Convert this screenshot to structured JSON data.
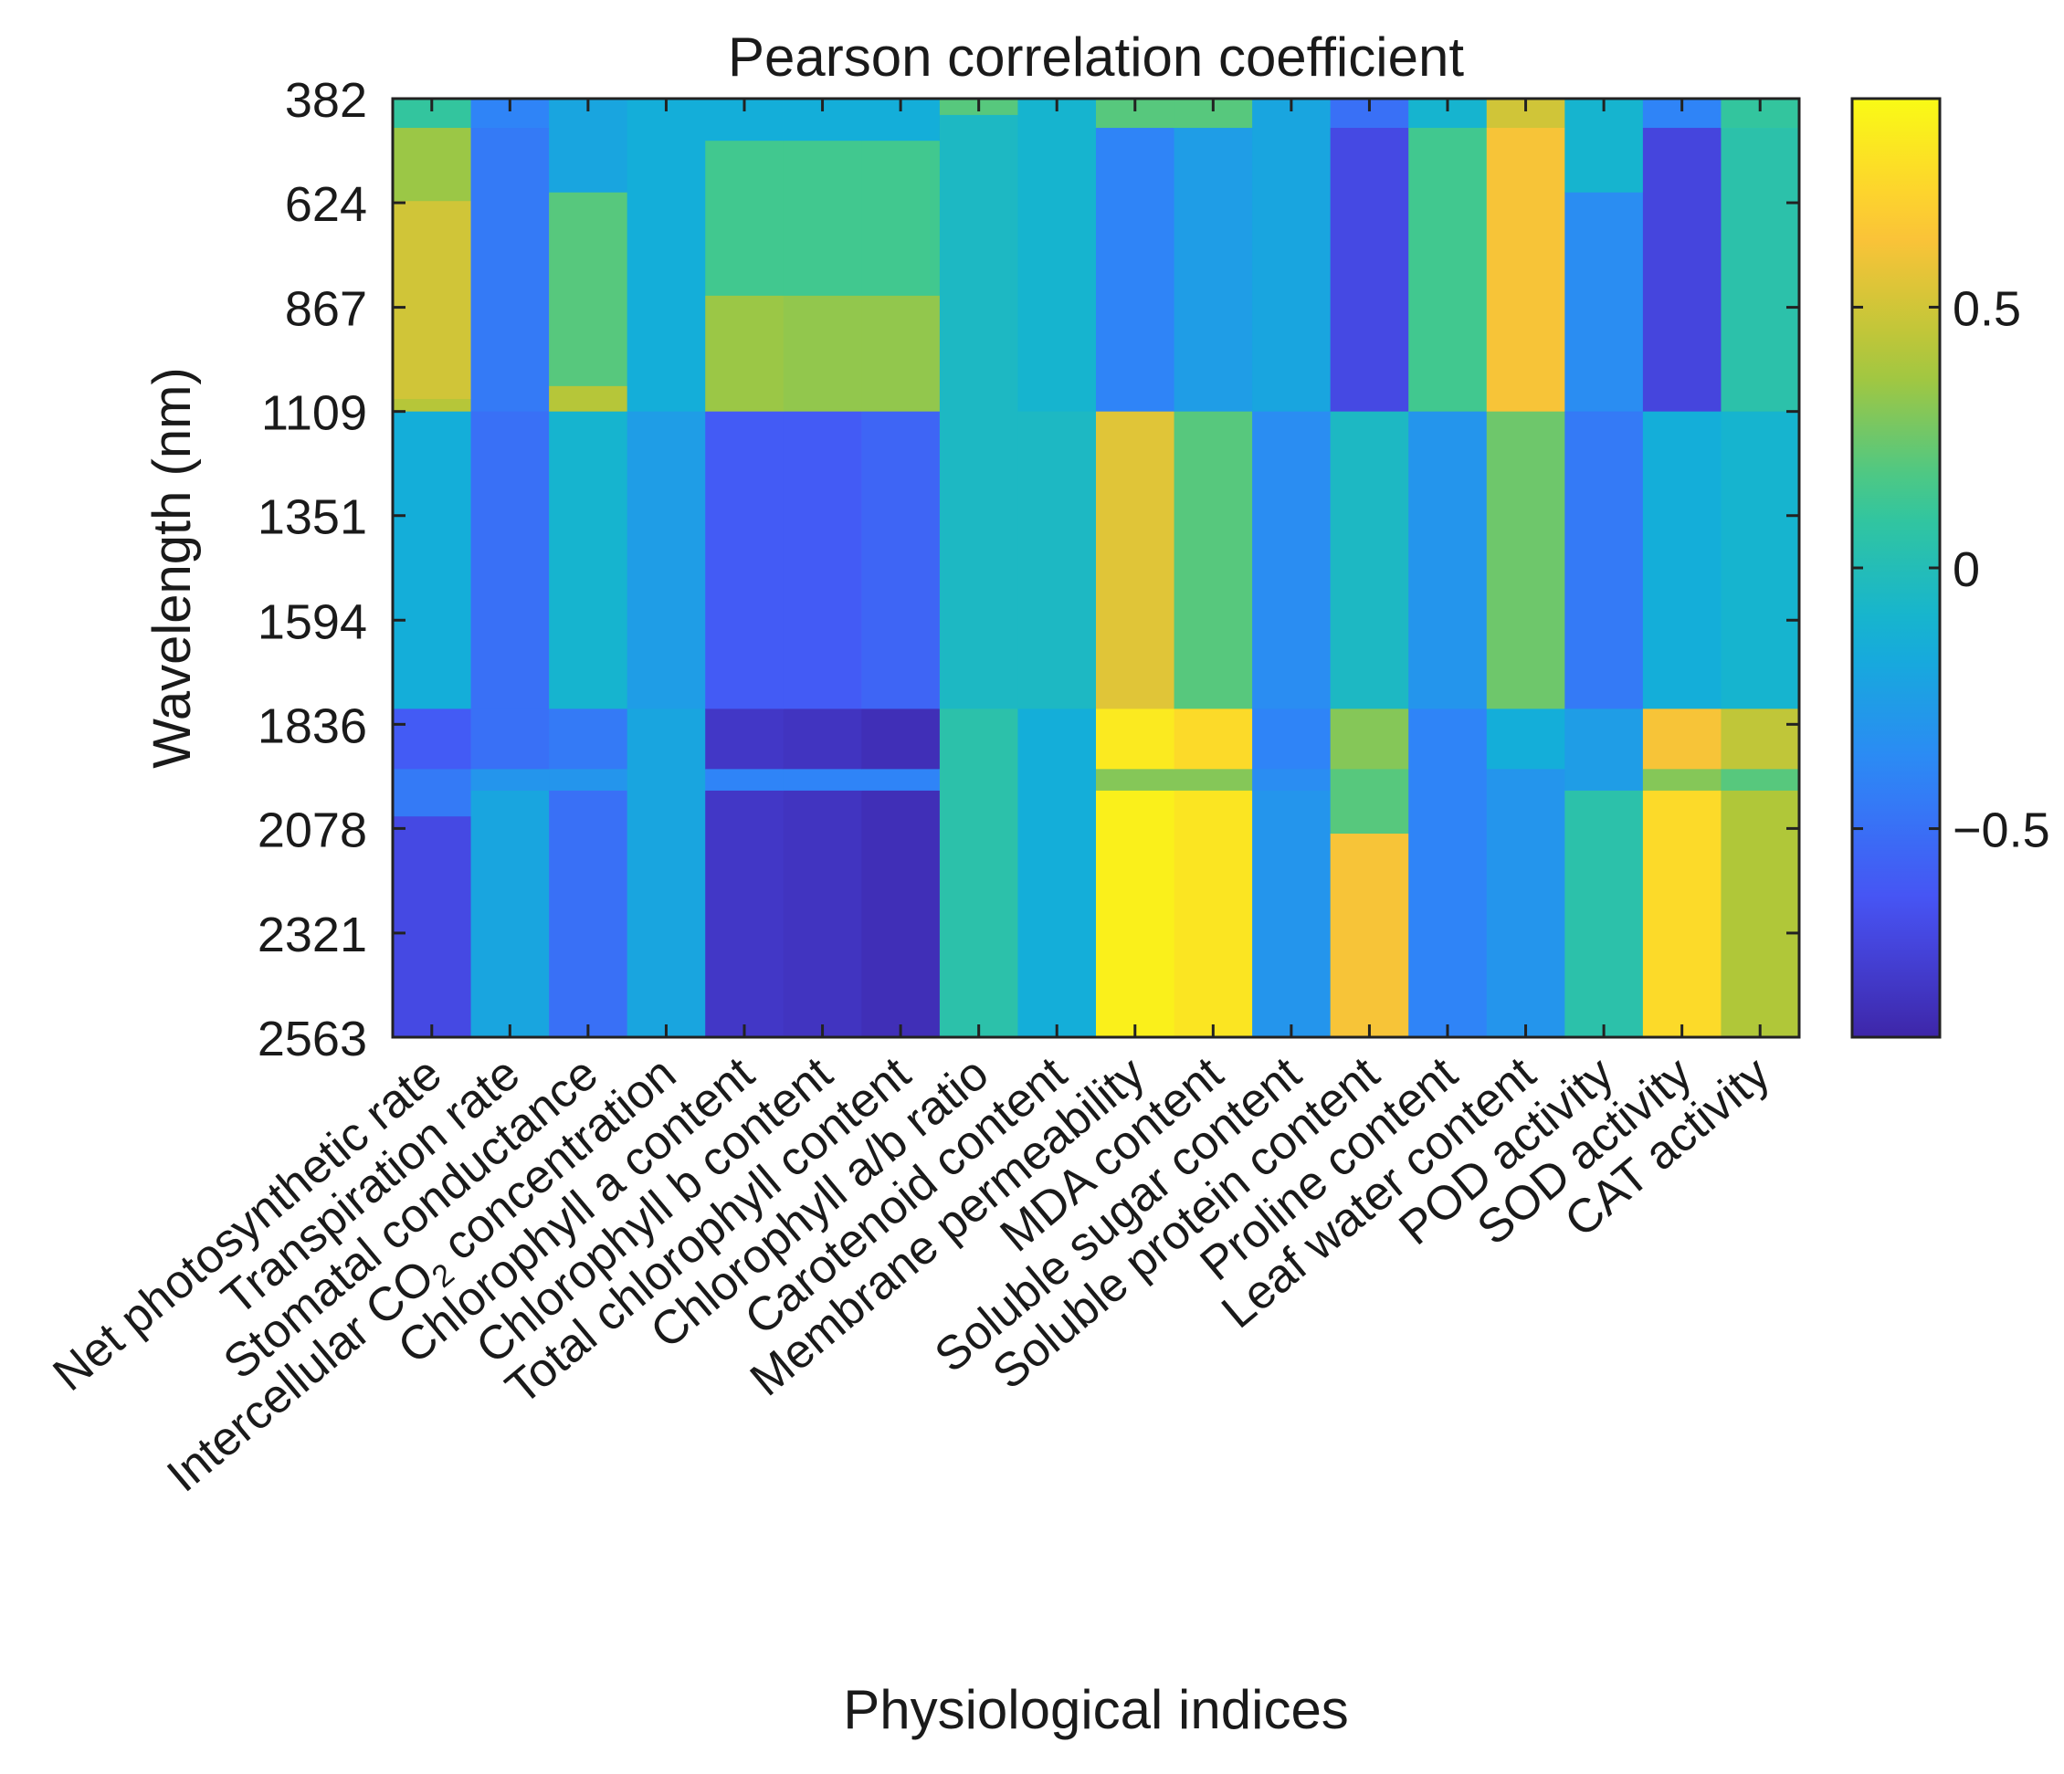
{
  "chart_data": {
    "type": "heatmap",
    "title": "Pearson correlation coefficient",
    "xlabel": "Physiological indices",
    "ylabel": "Wavelength (nm)",
    "ylim": [
      382,
      2563
    ],
    "y_ticks": [
      "382",
      "624",
      "867",
      "1109",
      "1351",
      "1594",
      "1836",
      "2078",
      "2321",
      "2563"
    ],
    "y_tick_values": [
      382,
      624,
      867,
      1109,
      1351,
      1594,
      1836,
      2078,
      2321,
      2563
    ],
    "categories": [
      "Net photosynthetic rate",
      "Transpiration rate",
      "Stomatal conductance",
      "Intercellular CO2 concentration",
      "Chlorophyll a content",
      "Chlorophyll b content",
      "Total chlorophyll content",
      "Chlorophyll a/b ratio",
      "Carotenoid content",
      "Membrane permeability",
      "MDA content",
      "Soluble sugar content",
      "Soluble protein content",
      "Proline content",
      "Leaf water content",
      "POD activity",
      "SOD activity",
      "CAT activity"
    ],
    "colorbar": {
      "range": [
        -0.9,
        0.9
      ],
      "ticks": [
        0.5,
        0,
        -0.5
      ],
      "tick_labels": [
        "0.5",
        "0",
        "−0.5"
      ],
      "colormap": "parula"
    },
    "segments": [
      {
        "name": "Net photosynthetic rate",
        "bands": [
          [
            382,
            450,
            0.1
          ],
          [
            450,
            620,
            0.35
          ],
          [
            620,
            1080,
            0.5
          ],
          [
            1080,
            1109,
            0.42
          ],
          [
            1109,
            1800,
            -0.15
          ],
          [
            1800,
            1940,
            -0.6
          ],
          [
            1940,
            2050,
            -0.45
          ],
          [
            2050,
            2563,
            -0.7
          ]
        ]
      },
      {
        "name": "Transpiration rate",
        "bands": [
          [
            382,
            450,
            -0.4
          ],
          [
            450,
            1109,
            -0.45
          ],
          [
            1109,
            1800,
            -0.5
          ],
          [
            1800,
            1940,
            -0.5
          ],
          [
            1940,
            1990,
            -0.3
          ],
          [
            1990,
            2563,
            -0.2
          ]
        ]
      },
      {
        "name": "Stomatal conductance",
        "bands": [
          [
            382,
            600,
            -0.2
          ],
          [
            600,
            1050,
            0.2
          ],
          [
            1050,
            1109,
            0.42
          ],
          [
            1109,
            1800,
            -0.1
          ],
          [
            1800,
            1940,
            -0.45
          ],
          [
            1940,
            1990,
            -0.3
          ],
          [
            1990,
            2563,
            -0.5
          ]
        ]
      },
      {
        "name": "Intercellular CO2 concentration",
        "bands": [
          [
            382,
            1109,
            -0.15
          ],
          [
            1109,
            1800,
            -0.25
          ],
          [
            1800,
            2563,
            -0.2
          ]
        ]
      },
      {
        "name": "Chlorophyll a content",
        "bands": [
          [
            382,
            480,
            -0.15
          ],
          [
            480,
            840,
            0.15
          ],
          [
            840,
            1109,
            0.35
          ],
          [
            1109,
            1800,
            -0.6
          ],
          [
            1800,
            1940,
            -0.8
          ],
          [
            1940,
            1990,
            -0.4
          ],
          [
            1990,
            2563,
            -0.8
          ]
        ]
      },
      {
        "name": "Chlorophyll b content",
        "bands": [
          [
            382,
            480,
            -0.15
          ],
          [
            480,
            840,
            0.15
          ],
          [
            840,
            1109,
            0.33
          ],
          [
            1109,
            1800,
            -0.6
          ],
          [
            1800,
            1940,
            -0.82
          ],
          [
            1940,
            1990,
            -0.4
          ],
          [
            1990,
            2563,
            -0.82
          ]
        ]
      },
      {
        "name": "Total chlorophyll content",
        "bands": [
          [
            382,
            480,
            -0.15
          ],
          [
            480,
            840,
            0.15
          ],
          [
            840,
            1109,
            0.33
          ],
          [
            1109,
            1800,
            -0.55
          ],
          [
            1800,
            1940,
            -0.85
          ],
          [
            1940,
            1990,
            -0.4
          ],
          [
            1990,
            2563,
            -0.85
          ]
        ]
      },
      {
        "name": "Chlorophyll a/b ratio",
        "bands": [
          [
            382,
            420,
            0.2
          ],
          [
            420,
            1800,
            -0.05
          ],
          [
            1800,
            2563,
            0.05
          ]
        ]
      },
      {
        "name": "Carotenoid content",
        "bands": [
          [
            382,
            1109,
            -0.1
          ],
          [
            1109,
            1800,
            -0.05
          ],
          [
            1800,
            2563,
            -0.15
          ]
        ]
      },
      {
        "name": "Membrane permeability",
        "bands": [
          [
            382,
            450,
            0.2
          ],
          [
            450,
            1109,
            -0.4
          ],
          [
            1109,
            1800,
            0.55
          ],
          [
            1800,
            1940,
            0.82
          ],
          [
            1940,
            1990,
            0.3
          ],
          [
            1990,
            2563,
            0.85
          ]
        ]
      },
      {
        "name": "MDA content",
        "bands": [
          [
            382,
            450,
            0.2
          ],
          [
            450,
            1109,
            -0.25
          ],
          [
            1109,
            1800,
            0.2
          ],
          [
            1800,
            1940,
            0.75
          ],
          [
            1940,
            1990,
            0.3
          ],
          [
            1990,
            2563,
            0.8
          ]
        ]
      },
      {
        "name": "Soluble sugar content",
        "bands": [
          [
            382,
            1109,
            -0.2
          ],
          [
            1109,
            1800,
            -0.35
          ],
          [
            1800,
            1940,
            -0.4
          ],
          [
            1940,
            1990,
            -0.35
          ],
          [
            1990,
            2563,
            -0.3
          ]
        ]
      },
      {
        "name": "Soluble protein content",
        "bands": [
          [
            382,
            450,
            -0.5
          ],
          [
            450,
            1109,
            -0.7
          ],
          [
            1109,
            1800,
            -0.05
          ],
          [
            1800,
            1940,
            0.3
          ],
          [
            1940,
            2090,
            0.2
          ],
          [
            2090,
            2563,
            0.62
          ]
        ]
      },
      {
        "name": "Proline content",
        "bands": [
          [
            382,
            450,
            -0.1
          ],
          [
            450,
            1109,
            0.15
          ],
          [
            1109,
            1800,
            -0.3
          ],
          [
            1800,
            2563,
            -0.4
          ]
        ]
      },
      {
        "name": "Leaf water content",
        "bands": [
          [
            382,
            450,
            0.5
          ],
          [
            450,
            1109,
            0.62
          ],
          [
            1109,
            1800,
            0.25
          ],
          [
            1800,
            1940,
            -0.15
          ],
          [
            1940,
            2563,
            -0.3
          ]
        ]
      },
      {
        "name": "POD activity",
        "bands": [
          [
            382,
            600,
            -0.1
          ],
          [
            600,
            1109,
            -0.35
          ],
          [
            1109,
            1800,
            -0.45
          ],
          [
            1800,
            1990,
            -0.25
          ],
          [
            1990,
            2563,
            0.05
          ]
        ]
      },
      {
        "name": "SOD activity",
        "bands": [
          [
            382,
            450,
            -0.4
          ],
          [
            450,
            1109,
            -0.72
          ],
          [
            1109,
            1800,
            -0.15
          ],
          [
            1800,
            1940,
            0.62
          ],
          [
            1940,
            1990,
            0.3
          ],
          [
            1990,
            2563,
            0.75
          ]
        ]
      },
      {
        "name": "CAT activity",
        "bands": [
          [
            382,
            450,
            0.1
          ],
          [
            450,
            1109,
            0.05
          ],
          [
            1109,
            1800,
            -0.1
          ],
          [
            1800,
            1940,
            0.45
          ],
          [
            1940,
            1990,
            0.2
          ],
          [
            1990,
            2563,
            0.4
          ]
        ]
      }
    ]
  }
}
